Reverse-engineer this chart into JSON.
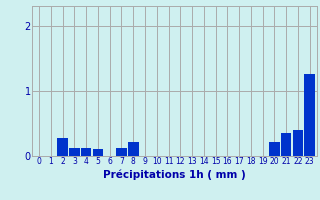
{
  "hours": [
    0,
    1,
    2,
    3,
    4,
    5,
    6,
    7,
    8,
    9,
    10,
    11,
    12,
    13,
    14,
    15,
    16,
    17,
    18,
    19,
    20,
    21,
    22,
    23
  ],
  "values": [
    0,
    0,
    0.28,
    0.13,
    0.13,
    0.1,
    0,
    0.12,
    0.22,
    0,
    0,
    0,
    0,
    0,
    0,
    0,
    0,
    0,
    0,
    0,
    0.22,
    0.35,
    0.4,
    1.25
  ],
  "bar_color": "#0033cc",
  "bg_color": "#cff0f0",
  "grid_color": "#aaaaaa",
  "axis_color": "#0000aa",
  "ylabel_values": [
    0,
    1,
    2
  ],
  "ylim": [
    0,
    2.3
  ],
  "xlabel": "Précipitations 1h ( mm )",
  "xlabel_fontsize": 7.5,
  "tick_fontsize": 5.5
}
